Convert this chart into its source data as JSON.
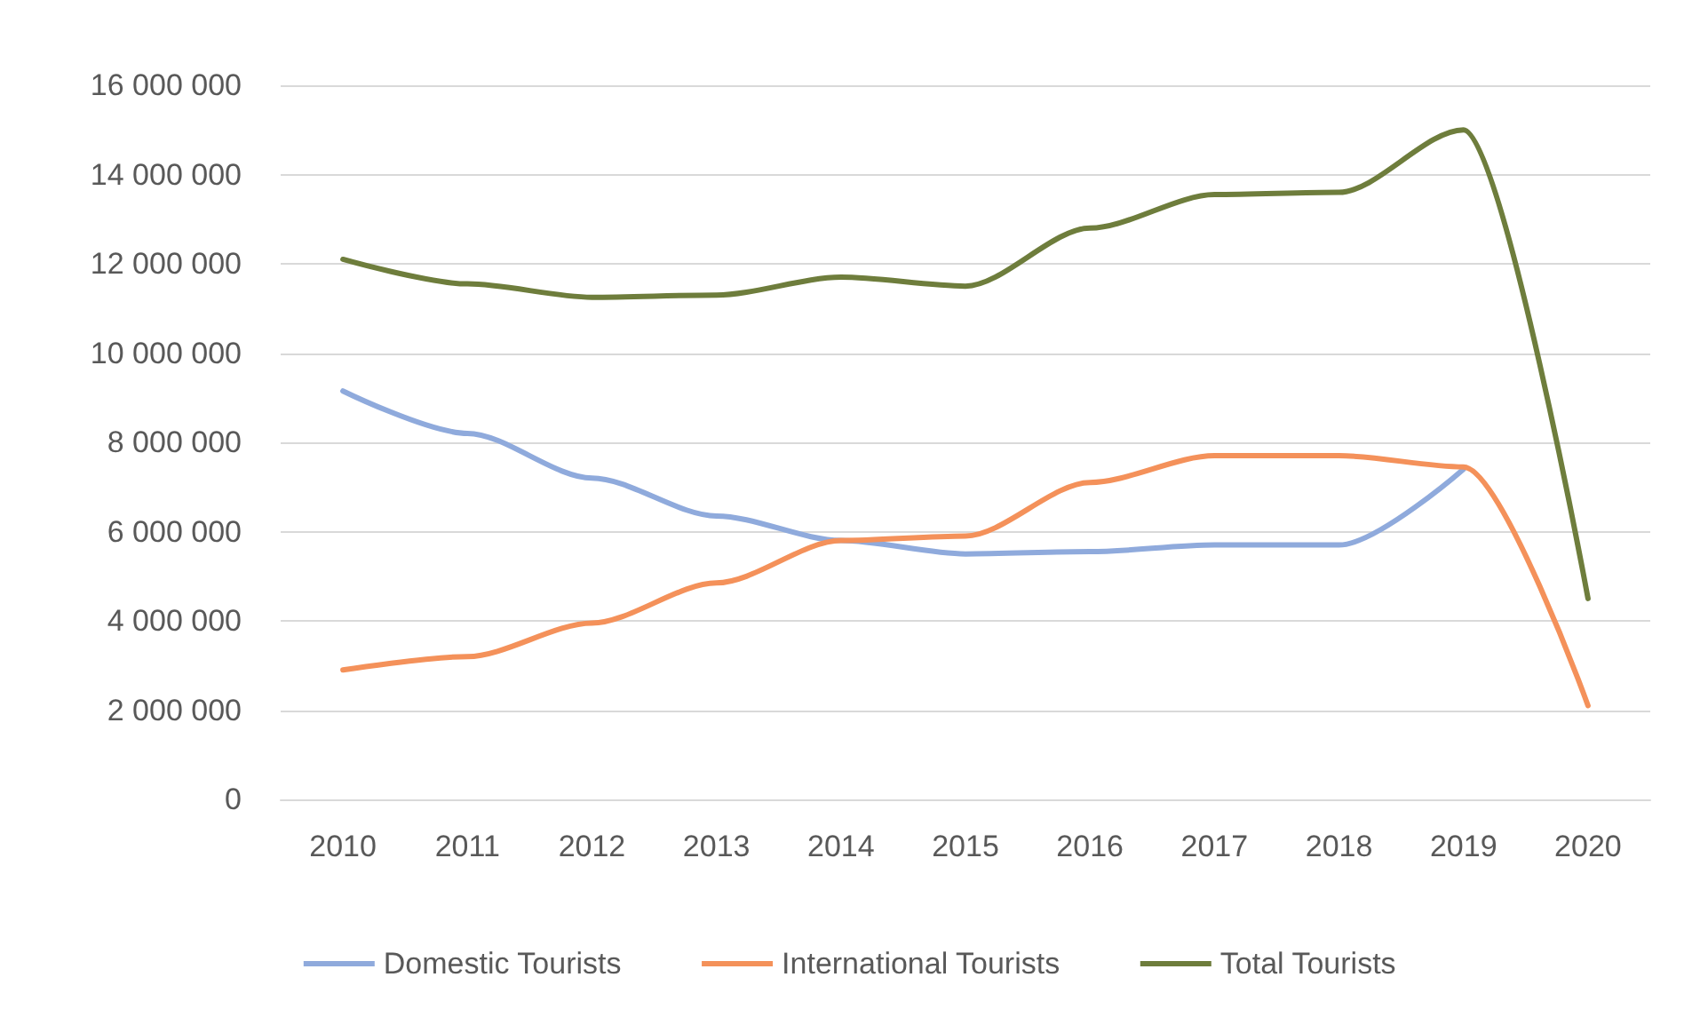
{
  "chart_data": {
    "type": "line",
    "categories": [
      "2010",
      "2011",
      "2012",
      "2013",
      "2014",
      "2015",
      "2016",
      "2017",
      "2018",
      "2019",
      "2020"
    ],
    "series": [
      {
        "name": "Domestic Tourists",
        "color": "#8faadc",
        "values": [
          9150000,
          8200000,
          7200000,
          6350000,
          5800000,
          5500000,
          5550000,
          5700000,
          5700000,
          7400000,
          null
        ]
      },
      {
        "name": "International Tourists",
        "color": "#f4915a",
        "values": [
          2900000,
          3200000,
          3950000,
          4850000,
          5800000,
          5900000,
          7100000,
          7700000,
          7700000,
          7450000,
          2100000
        ]
      },
      {
        "name": "Total Tourists",
        "color": "#6e7d3c",
        "values": [
          12100000,
          11550000,
          11250000,
          11300000,
          11700000,
          11500000,
          12800000,
          13550000,
          13600000,
          15000000,
          4500000
        ]
      }
    ],
    "ylim": [
      0,
      16000000
    ],
    "yticks": [
      {
        "value": 0,
        "label": "0"
      },
      {
        "value": 2000000,
        "label": "2 000 000"
      },
      {
        "value": 4000000,
        "label": "4 000 000"
      },
      {
        "value": 6000000,
        "label": "6 000 000"
      },
      {
        "value": 8000000,
        "label": "8 000 000"
      },
      {
        "value": 10000000,
        "label": "10 000 000"
      },
      {
        "value": 12000000,
        "label": "12 000 000"
      },
      {
        "value": 14000000,
        "label": "14 000 000"
      },
      {
        "value": 16000000,
        "label": "16 000 000"
      }
    ],
    "grid": "y",
    "legend": "bottom",
    "marker": "none",
    "line_style": "solid"
  }
}
